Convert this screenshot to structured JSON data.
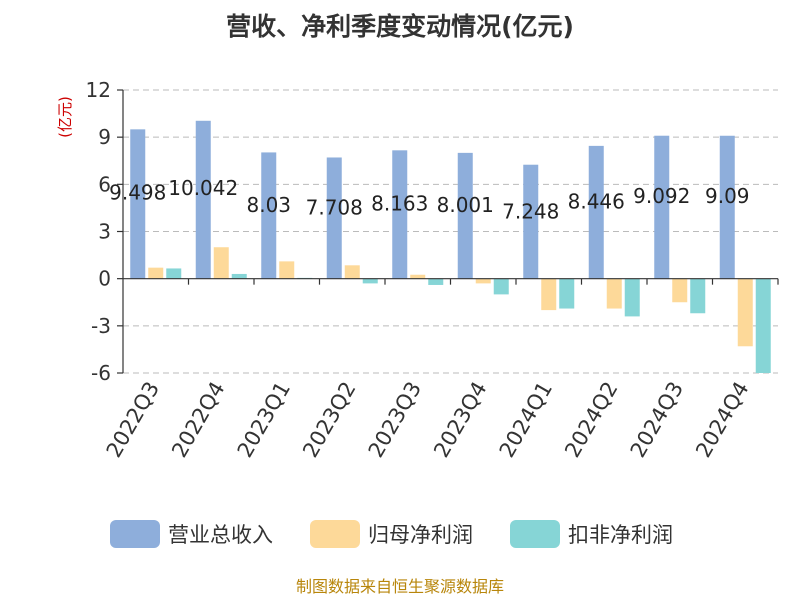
{
  "chart_data": {
    "type": "bar",
    "title": "营收、净利季度变动情况(亿元)",
    "unit_label": "(亿元)",
    "categories": [
      "2022Q3",
      "2022Q4",
      "2023Q1",
      "2023Q2",
      "2023Q3",
      "2023Q4",
      "2024Q1",
      "2024Q2",
      "2024Q3",
      "2024Q4"
    ],
    "series": [
      {
        "name": "营业总收入",
        "color": "#8eaedb",
        "values": [
          9.498,
          10.042,
          8.03,
          7.708,
          8.163,
          8.001,
          7.248,
          8.446,
          9.092,
          9.09
        ],
        "labels": [
          "9.498",
          "10.042",
          "8.03",
          "7.708",
          "8.163",
          "8.001",
          "7.248",
          "8.446",
          "9.092",
          "9.09"
        ]
      },
      {
        "name": "归母净利润",
        "color": "#fdd999",
        "values": [
          0.7,
          2.0,
          1.1,
          0.85,
          0.25,
          -0.3,
          -2.0,
          -1.9,
          -1.5,
          -4.3
        ]
      },
      {
        "name": "扣非净利润",
        "color": "#86d5d6",
        "values": [
          0.65,
          0.3,
          0.05,
          -0.3,
          -0.4,
          -1.0,
          -1.9,
          -2.4,
          -2.2,
          -6.0
        ]
      }
    ],
    "ylim": [
      -6,
      12
    ],
    "yticks": [
      "12",
      "9",
      "6",
      "3",
      "0",
      "-3",
      "-6"
    ],
    "ytick_values": [
      12,
      9,
      6,
      3,
      0,
      -3,
      -6
    ],
    "grid": true,
    "legend_position": "bottom"
  },
  "source": "制图数据来自恒生聚源数据库"
}
